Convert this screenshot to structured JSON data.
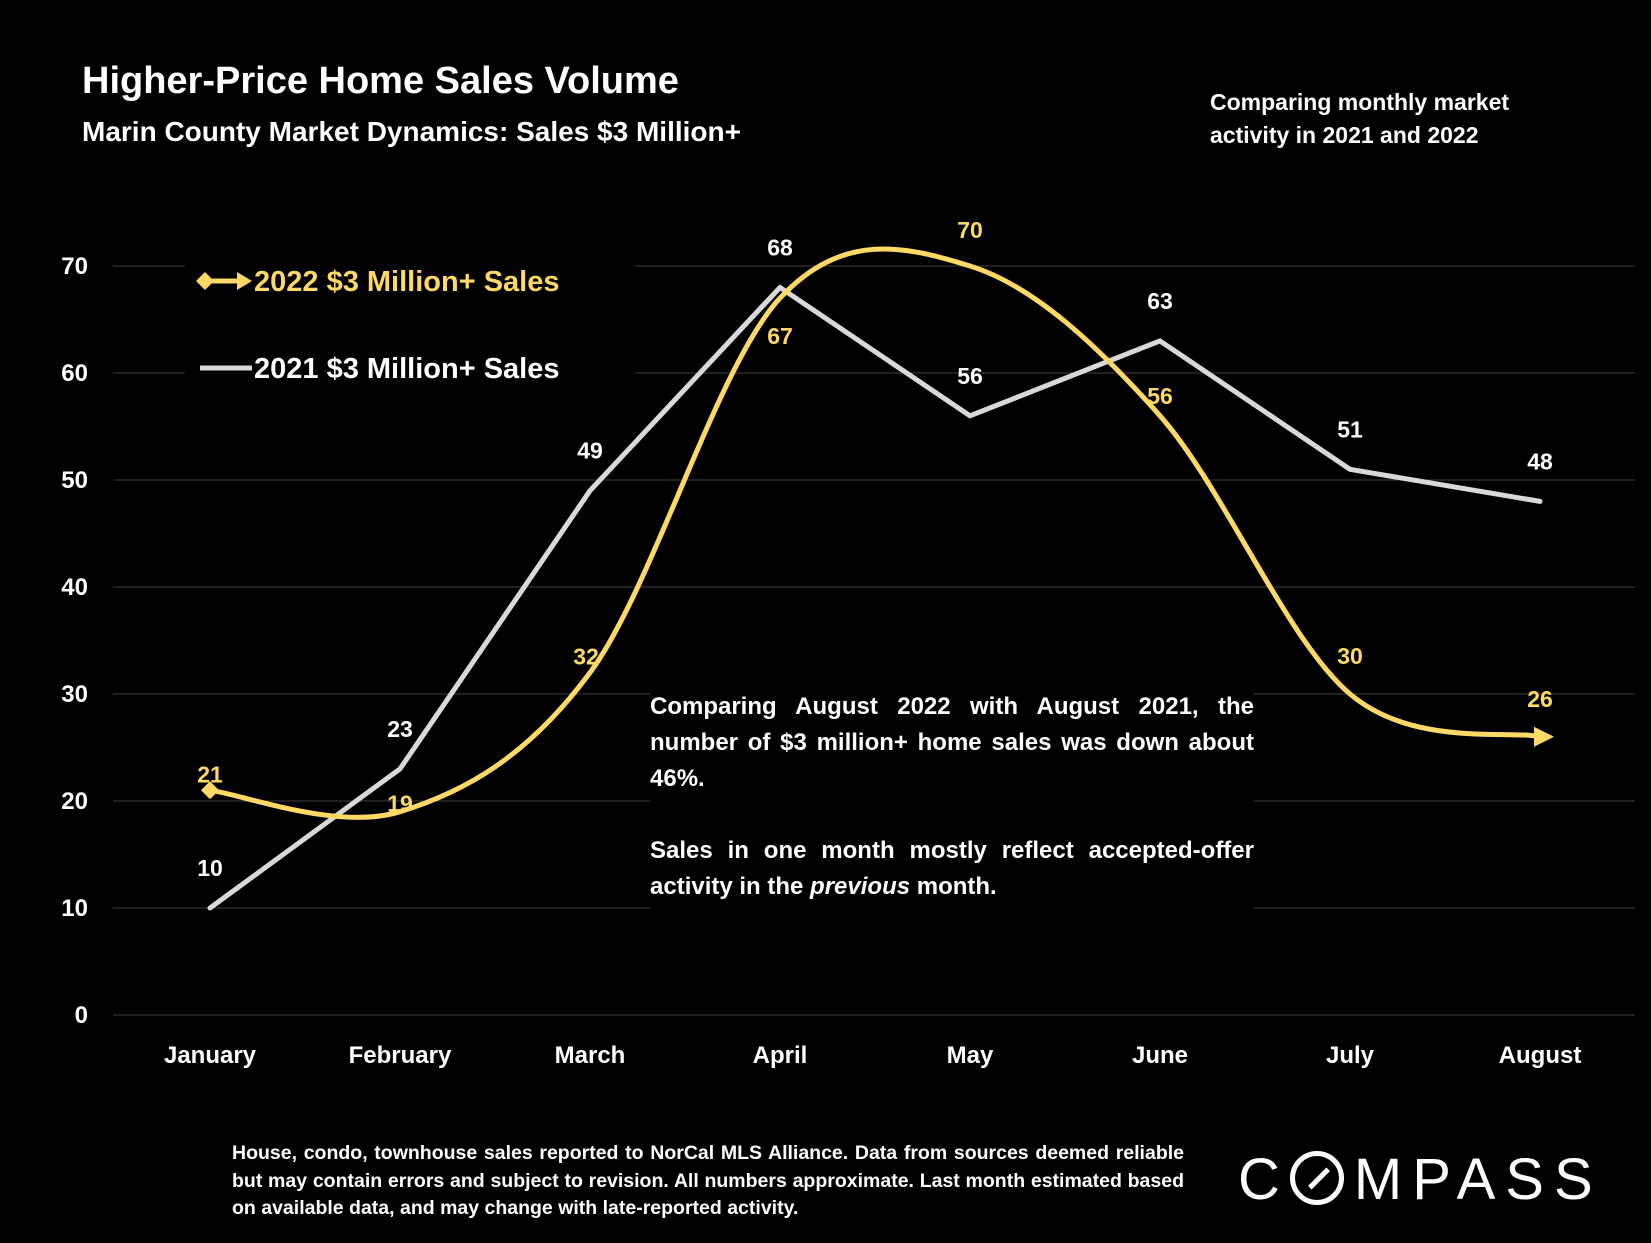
{
  "title": "Higher-Price Home Sales Volume",
  "subtitle": "Marin County Market Dynamics: Sales $3 Million+",
  "note": "Comparing monthly market activity in 2021 and 2022",
  "callout": {
    "p1": "Comparing August 2022 with August 2021, the number of $3 million+ home sales was down about 46%.",
    "p2_before": "Sales in one month mostly reflect accepted-offer activity in the ",
    "p2_italic": "previous",
    "p2_after": " month."
  },
  "footer": "House, condo, townhouse sales reported to NorCal MLS Alliance. Data from sources deemed reliable but may contain errors and subject to revision. All numbers approximate. Last month estimated based on available data, and may change with late-reported activity.",
  "logo": {
    "letter": "C",
    "rest": "MPASS",
    "name": "COMPASS"
  },
  "colors": {
    "background": "#000000",
    "series_2022": "#FFD966",
    "series_2021": "#D9D9D9",
    "grid": "#404040"
  },
  "chart_data": {
    "type": "line",
    "categories": [
      "January",
      "February",
      "March",
      "April",
      "May",
      "June",
      "July",
      "August"
    ],
    "ylim": [
      0,
      70
    ],
    "yticks": [
      0,
      10,
      20,
      30,
      40,
      50,
      60,
      70
    ],
    "grid": true,
    "legend_position": "top-left",
    "series": [
      {
        "name": "2022 $3 Million+ Sales",
        "values": [
          21,
          19,
          32,
          67,
          70,
          56,
          30,
          26
        ],
        "color": "#FFD966",
        "smooth": true,
        "markers": "diamond-start-arrow-end",
        "labels": [
          "21",
          "19",
          "32",
          "67",
          "70",
          "56",
          "30",
          "26"
        ]
      },
      {
        "name": "2021 $3 Million+ Sales",
        "values": [
          10,
          23,
          49,
          68,
          56,
          63,
          51,
          48
        ],
        "color": "#D9D9D9",
        "smooth": false,
        "labels": [
          "10",
          "23",
          "49",
          "68",
          "56",
          "63",
          "51",
          "48"
        ]
      }
    ]
  }
}
